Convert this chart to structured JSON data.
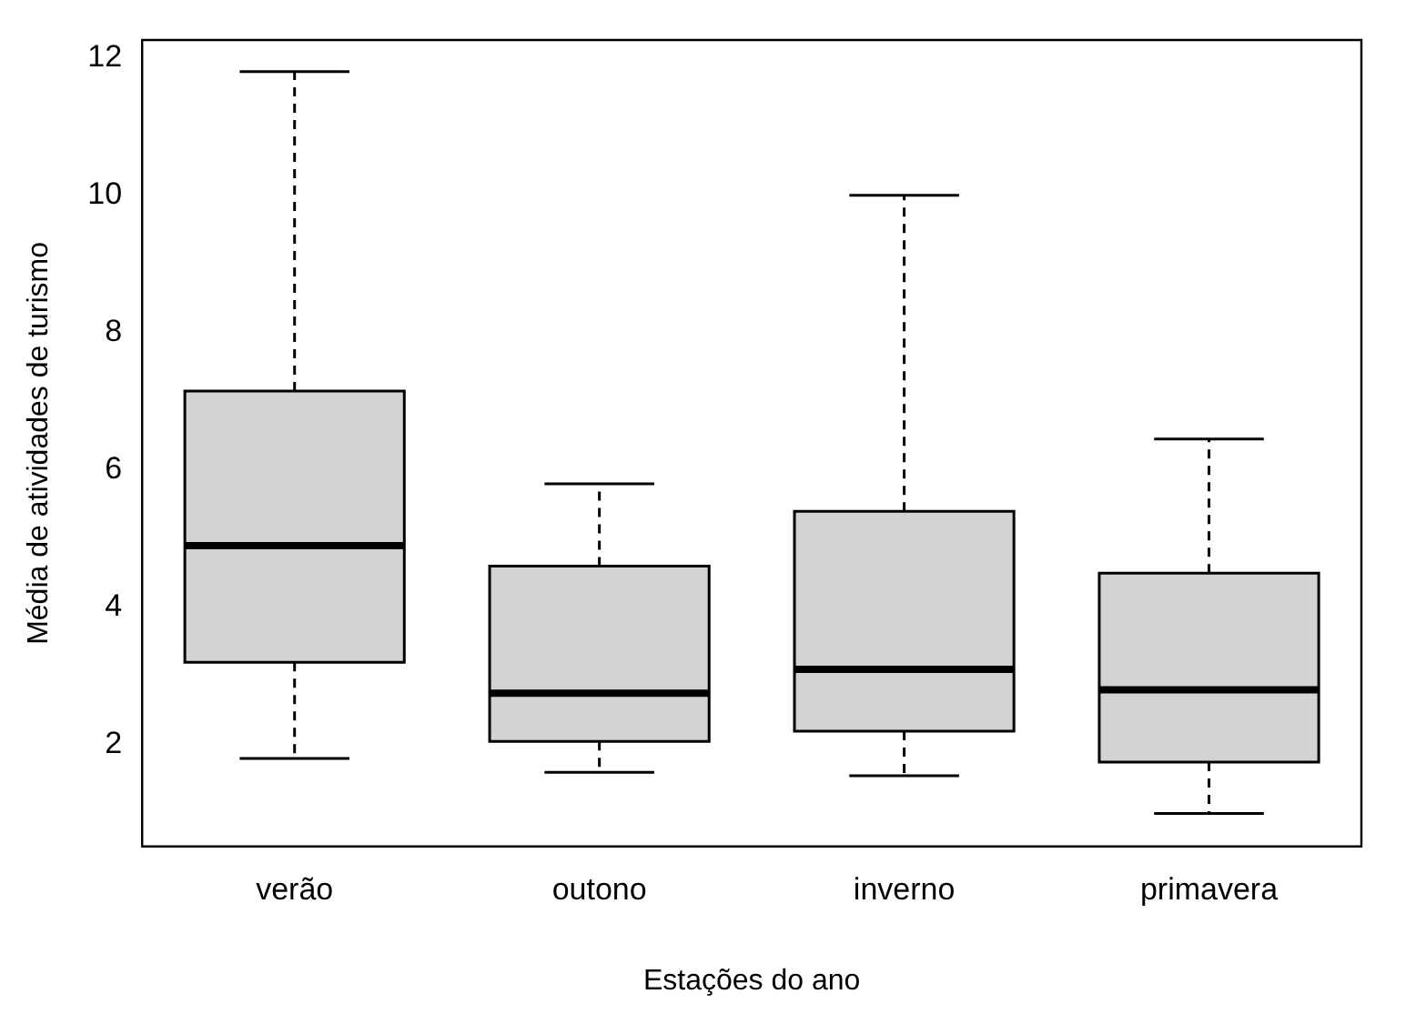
{
  "chart_data": {
    "type": "box",
    "xlabel": "Estações do ano",
    "ylabel": "Média de atividades de turismo",
    "categories": [
      "verão",
      "outono",
      "inverno",
      "primavera"
    ],
    "series": [
      {
        "color": "#d3d3d3",
        "boxes": [
          {
            "low": 1.8,
            "q1": 3.2,
            "median": 4.9,
            "q3": 7.15,
            "high": 11.8
          },
          {
            "low": 1.6,
            "q1": 2.05,
            "median": 2.75,
            "q3": 4.6,
            "high": 5.8
          },
          {
            "low": 1.55,
            "q1": 2.2,
            "median": 3.1,
            "q3": 5.4,
            "high": 10.0
          },
          {
            "low": 1.0,
            "q1": 1.75,
            "median": 2.8,
            "q3": 4.5,
            "high": 6.45
          }
        ]
      }
    ],
    "ylim": [
      0.52,
      12.26
    ],
    "yticks": [
      2,
      4,
      6,
      8,
      10,
      12
    ],
    "grid": false,
    "legend": false
  }
}
